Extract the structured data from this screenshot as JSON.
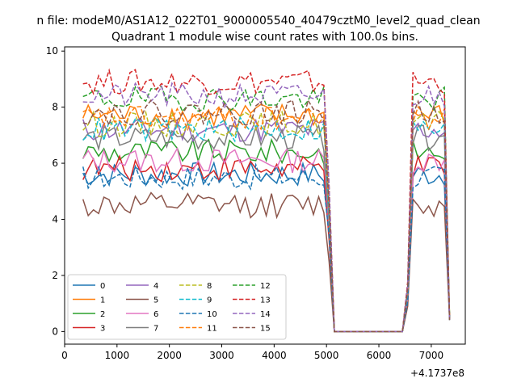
{
  "figure": {
    "suptitle": "n file: modeM0/AS1A12_022T01_9000005540_40479cztM0_level2_quad_clean",
    "offset_label": "+4.1737e8"
  },
  "chart_data": {
    "type": "line",
    "title": "Quadrant 1 module wise count rates with 100.0s bins.",
    "xlabel": "",
    "ylabel": "",
    "xlim": [
      0,
      7650
    ],
    "ylim": [
      -0.45,
      10.15
    ],
    "x_ticks": [
      0,
      1000,
      2000,
      3000,
      4000,
      5000,
      6000,
      7000
    ],
    "y_ticks": [
      0,
      2,
      4,
      6,
      8,
      10
    ],
    "grid": false,
    "legend_placement": "lower-left",
    "legend_columns": 4,
    "x": [
      350,
      450,
      550,
      650,
      750,
      850,
      950,
      1050,
      1150,
      1250,
      1350,
      1450,
      1550,
      1650,
      1750,
      1850,
      1950,
      2050,
      2150,
      2250,
      2350,
      2450,
      2550,
      2650,
      2750,
      2850,
      2950,
      3050,
      3150,
      3250,
      3350,
      3450,
      3550,
      3650,
      3750,
      3850,
      3950,
      4050,
      4150,
      4250,
      4350,
      4450,
      4550,
      4650,
      4750,
      4850,
      4950,
      5050,
      5150,
      5250,
      5350,
      5450,
      5550,
      5650,
      5750,
      5850,
      5950,
      6050,
      6150,
      6250,
      6350,
      6450,
      6550,
      6650,
      6750,
      6850,
      6950,
      7050,
      7150,
      7250,
      7350
    ],
    "series": [
      {
        "name": "0",
        "color": "#1f77b4",
        "dash": "solid",
        "mean": 5.6
      },
      {
        "name": "1",
        "color": "#ff7f0e",
        "dash": "solid",
        "mean": 7.7
      },
      {
        "name": "2",
        "color": "#2ca02c",
        "dash": "solid",
        "mean": 6.4
      },
      {
        "name": "3",
        "color": "#d62728",
        "dash": "solid",
        "mean": 5.8
      },
      {
        "name": "4",
        "color": "#9467bd",
        "dash": "solid",
        "mean": 7.2
      },
      {
        "name": "5",
        "color": "#8c564b",
        "dash": "solid",
        "mean": 4.5
      },
      {
        "name": "6",
        "color": "#e377c2",
        "dash": "solid",
        "mean": 6.1
      },
      {
        "name": "7",
        "color": "#7f7f7f",
        "dash": "solid",
        "mean": 6.9
      },
      {
        "name": "8",
        "color": "#bcbd22",
        "dash": "dashed",
        "mean": 7.4
      },
      {
        "name": "9",
        "color": "#17becf",
        "dash": "dashed",
        "mean": 7.2
      },
      {
        "name": "10",
        "color": "#1f77b4",
        "dash": "dashed",
        "mean": 5.5
      },
      {
        "name": "11",
        "color": "#ff7f0e",
        "dash": "dashed",
        "mean": 7.6
      },
      {
        "name": "12",
        "color": "#2ca02c",
        "dash": "dashed",
        "mean": 8.3
      },
      {
        "name": "13",
        "color": "#d62728",
        "dash": "dashed",
        "mean": 8.9
      },
      {
        "name": "14",
        "color": "#9467bd",
        "dash": "dashed",
        "mean": 8.4
      },
      {
        "name": "15",
        "color": "#8c564b",
        "dash": "dashed",
        "mean": 7.8
      }
    ],
    "gap": {
      "drop_start": 5050,
      "zero_from": 5150,
      "zero_to": 6450,
      "rise_end": 6650,
      "tail_drop_x": 7350,
      "tail_value": 0.5
    }
  }
}
